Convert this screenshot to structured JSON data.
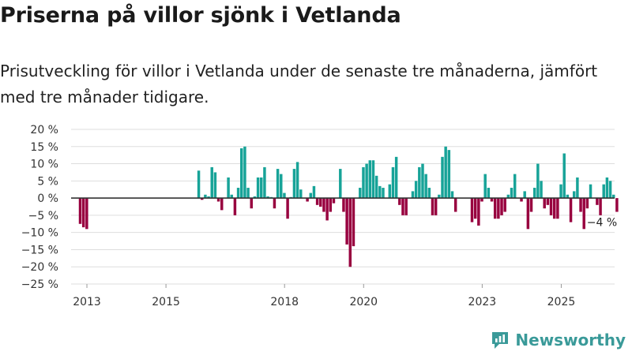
{
  "header": {
    "title": "Priserna på villor sjönk i Vetlanda",
    "subtitle": "Prisutveckling för villor i Vetlanda under de senaste tre månaderna, jämfört med tre månader tidigare."
  },
  "brand": {
    "name": "Newsworthy"
  },
  "colors": {
    "positive": "#17a398",
    "negative": "#98003f",
    "grid": "#dddddd",
    "zero": "#333333",
    "brand": "#3a9a99"
  },
  "chart_data": {
    "type": "bar",
    "title": "Priserna på villor sjönk i Vetlanda",
    "ylabel": "",
    "ylim": [
      -25,
      20
    ],
    "yticks": [
      20,
      15,
      10,
      5,
      0,
      -5,
      -10,
      -15,
      -20,
      -25
    ],
    "ytick_labels": [
      "20 %",
      "15 %",
      "10 %",
      "5 %",
      "0 %",
      "−5 %",
      "−10 %",
      "−15 %",
      "−20 %",
      "−25 %"
    ],
    "x_range": [
      2012.6,
      2026.35
    ],
    "xticks": [
      2013,
      2015,
      2018,
      2020,
      2023,
      2025
    ],
    "xtick_labels": [
      "2013",
      "2015",
      "2018",
      "2020",
      "2023",
      "2025"
    ],
    "annotation": {
      "text": "−4 %",
      "year": 2025.67,
      "value": -4
    },
    "series": [
      {
        "name": "Prisutveckling",
        "start_year": 2012.83,
        "step": 0.0833,
        "values": [
          -7.5,
          -8.5,
          -9,
          null,
          null,
          null,
          null,
          null,
          null,
          null,
          null,
          null,
          null,
          null,
          null,
          null,
          null,
          null,
          null,
          null,
          null,
          null,
          null,
          null,
          null,
          null,
          null,
          null,
          null,
          null,
          null,
          null,
          null,
          null,
          null,
          null,
          8,
          -0.5,
          1,
          0.5,
          9,
          7.5,
          -1,
          -3.5,
          null,
          6,
          1,
          -5,
          3,
          14.5,
          15,
          3,
          -3,
          0.5,
          6,
          6,
          9,
          0.5,
          0.3,
          -3,
          8.5,
          7,
          1.5,
          -6,
          0.3,
          8.5,
          10.5,
          2.5,
          0,
          -1,
          1.5,
          3.5,
          -2,
          -2.5,
          -4,
          -6.5,
          -4,
          -1.5,
          0,
          8.5,
          -4,
          -13.5,
          -20,
          -14,
          0,
          3,
          9,
          10,
          11,
          11,
          6.5,
          3.5,
          3,
          0,
          4,
          9,
          12,
          -2,
          -5,
          -5,
          0,
          2,
          5,
          9,
          10,
          7,
          3,
          -5,
          -5,
          1,
          12,
          15,
          14,
          2,
          -4,
          null,
          null,
          null,
          null,
          -7,
          -6,
          -8,
          -1,
          7,
          3,
          -1,
          -6,
          -6,
          -5,
          -4,
          1,
          3,
          7,
          0,
          -1,
          2,
          -9,
          -4,
          3,
          10,
          5,
          -3,
          -2,
          -5,
          -6,
          -6,
          4,
          13,
          1,
          -7,
          2,
          6,
          -4,
          -9,
          -3,
          4,
          0,
          -2,
          -5,
          4,
          6,
          5,
          1,
          -4
        ]
      }
    ]
  }
}
